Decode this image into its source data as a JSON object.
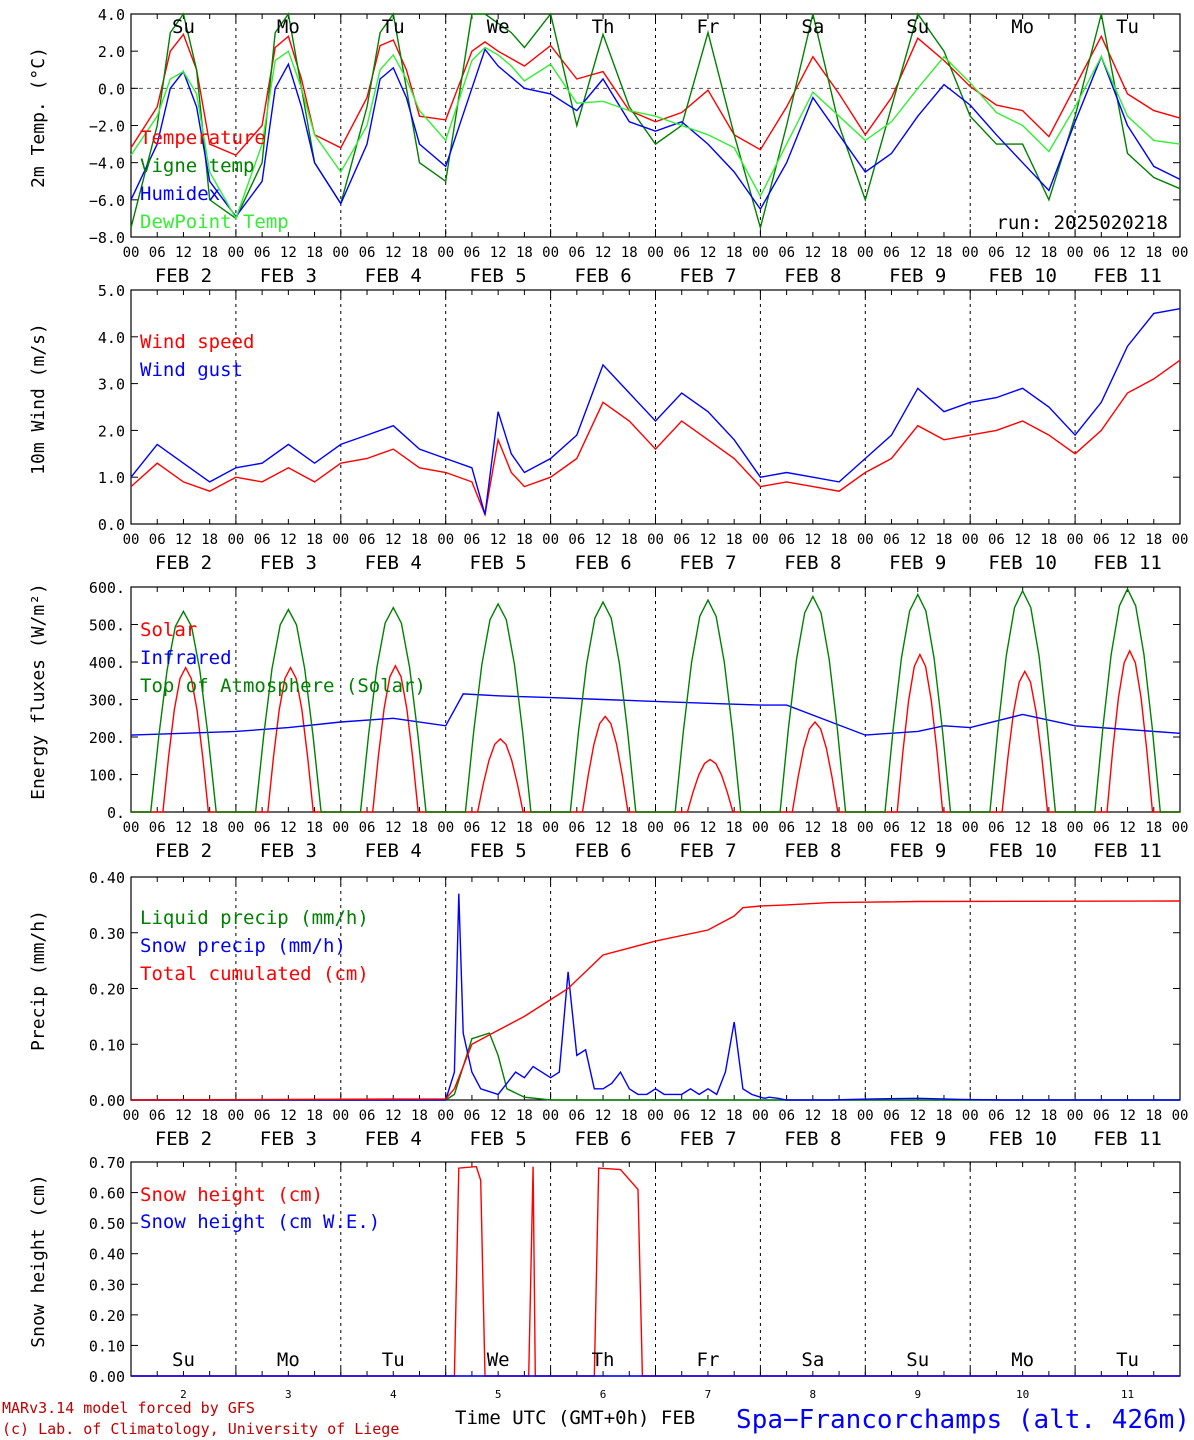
{
  "footer": {
    "model": "MARv3.14 model forced by GFS",
    "lab": "(c) Lab. of Climatology, University of Liege",
    "xlabel": "Time UTC (GMT+0h) FEB",
    "station": "Spa−Francorchamps (alt. 426m)"
  },
  "days": {
    "labels": [
      "Su",
      "Mo",
      "Tu",
      "We",
      "Th",
      "Fr",
      "Sa",
      "Su",
      "Mo",
      "Tu"
    ],
    "weekend_flags": [
      true,
      false,
      false,
      false,
      false,
      false,
      true,
      true,
      false,
      false
    ],
    "dates": [
      "FEB  2",
      "FEB  3",
      "FEB  4",
      "FEB  5",
      "FEB  6",
      "FEB  7",
      "FEB  8",
      "FEB  9",
      "FEB 10",
      "FEB 11"
    ],
    "day_numbers": [
      "2",
      "3",
      "4",
      "5",
      "6",
      "7",
      "8",
      "9",
      "10",
      "11"
    ],
    "hour_ticks": [
      "00",
      "06",
      "12",
      "18"
    ],
    "final_hour": "00"
  },
  "colors": {
    "red": "#ff0000",
    "green": "#008000",
    "blue": "#0000ff",
    "lightgreen": "#33ee33"
  },
  "chart_data": [
    {
      "type": "line",
      "id": "temp",
      "ylabel": "2m Temp. (°C)",
      "ylim": [
        -8,
        4
      ],
      "yticks": [
        "−8.0",
        "−6.0",
        "−4.0",
        "−2.0",
        "0.0",
        "2.0",
        "4.0"
      ],
      "ytick_values": [
        -8,
        -6,
        -4,
        -2,
        0,
        2,
        4
      ],
      "annotation": "run: 2025020218",
      "legend": [
        "Temperature",
        "Vigne temp",
        "Humidex",
        "DewPoint Temp"
      ],
      "series": [
        {
          "name": "Temperature",
          "color": "red",
          "x": [
            0,
            6,
            9,
            12,
            15,
            18,
            24,
            30,
            33,
            36,
            39,
            42,
            48,
            54,
            57,
            60,
            63,
            66,
            72,
            78,
            81,
            84,
            87,
            90,
            96,
            102,
            108,
            114,
            120,
            126,
            132,
            138,
            144,
            150,
            156,
            162,
            168,
            174,
            180,
            186,
            192,
            198,
            204,
            210,
            216,
            222,
            228,
            234,
            240
          ],
          "y": [
            -3.2,
            -1,
            2,
            2.9,
            1,
            -3,
            -3.6,
            -2,
            2.2,
            2.8,
            0.5,
            -2.5,
            -3.2,
            -0.5,
            2.3,
            2.6,
            1,
            -1.5,
            -1.7,
            2,
            2.5,
            2,
            1.6,
            1.2,
            2.3,
            0.5,
            0.9,
            -1.2,
            -1.8,
            -1.3,
            -0.1,
            -2.5,
            -3.3,
            -1,
            1.7,
            -0.3,
            -2.5,
            -0.5,
            2.7,
            1.5,
            0.1,
            -0.9,
            -1.2,
            -2.6,
            0.1,
            2.8,
            -0.3,
            -1.2,
            -1.6
          ]
        },
        {
          "name": "Vigne temp",
          "color": "green",
          "x": [
            0,
            6,
            9,
            12,
            15,
            18,
            24,
            30,
            33,
            36,
            39,
            42,
            48,
            54,
            57,
            60,
            63,
            66,
            72,
            78,
            81,
            84,
            87,
            90,
            96,
            102,
            108,
            114,
            120,
            126,
            132,
            138,
            144,
            150,
            156,
            162,
            168,
            174,
            180,
            186,
            192,
            198,
            204,
            210,
            216,
            222,
            228,
            234,
            240
          ],
          "y": [
            -7.5,
            -2,
            3,
            4,
            1,
            -6,
            -7,
            -4,
            3,
            4,
            0,
            -4,
            -6.2,
            -1,
            3,
            4,
            0,
            -4,
            -5,
            4,
            4,
            3.5,
            3,
            2.2,
            4,
            -2,
            2.9,
            -1,
            -3,
            -2,
            3,
            -2.5,
            -7.5,
            -2,
            4,
            -2,
            -6,
            -1,
            4,
            2,
            -1.5,
            -3,
            -3,
            -6,
            -1.5,
            4,
            -3.5,
            -4.8,
            -5.4
          ]
        },
        {
          "name": "Humidex",
          "color": "blue",
          "x": [
            0,
            6,
            9,
            12,
            15,
            18,
            24,
            30,
            33,
            36,
            39,
            42,
            48,
            54,
            57,
            60,
            63,
            66,
            72,
            78,
            81,
            84,
            87,
            90,
            96,
            102,
            108,
            114,
            120,
            126,
            132,
            138,
            144,
            150,
            156,
            162,
            168,
            174,
            180,
            186,
            192,
            198,
            204,
            210,
            216,
            222,
            228,
            234,
            240
          ],
          "y": [
            -6,
            -3,
            0,
            0.9,
            -1,
            -5,
            -6.9,
            -5,
            0,
            1.3,
            -1,
            -4,
            -6.2,
            -3,
            0.5,
            1.1,
            -0.5,
            -3,
            -4.2,
            0,
            2.1,
            1.2,
            0.6,
            0,
            -0.3,
            -1.2,
            0.5,
            -1.8,
            -2.3,
            -1.8,
            -3,
            -4.5,
            -6.5,
            -4,
            -0.5,
            -2.5,
            -4.5,
            -3.5,
            -1.5,
            0.2,
            -0.9,
            -2.5,
            -4,
            -5.5,
            -1.8,
            1.7,
            -2,
            -4.2,
            -4.9
          ]
        },
        {
          "name": "DewPoint Temp",
          "color": "lightgreen",
          "x": [
            0,
            6,
            9,
            12,
            15,
            18,
            24,
            30,
            33,
            36,
            39,
            42,
            48,
            54,
            57,
            60,
            63,
            66,
            72,
            78,
            81,
            84,
            87,
            90,
            96,
            102,
            108,
            114,
            120,
            126,
            132,
            138,
            144,
            150,
            156,
            162,
            168,
            174,
            180,
            186,
            192,
            198,
            204,
            210,
            216,
            222,
            228,
            234,
            240
          ],
          "y": [
            -3.6,
            -1.5,
            0.5,
            0.9,
            -0.3,
            -4.5,
            -7,
            -3,
            1.5,
            2,
            0,
            -2.5,
            -4.5,
            -2,
            1,
            1.8,
            0.5,
            -1.2,
            -2.8,
            1.5,
            2.2,
            1.8,
            1.2,
            0.4,
            1.3,
            -0.8,
            -0.7,
            -1.2,
            -1.5,
            -2,
            -2.5,
            -3.2,
            -5.8,
            -3,
            -0.2,
            -1.5,
            -2.8,
            -1.8,
            0,
            1.7,
            0.3,
            -1.3,
            -2,
            -3.4,
            -1,
            1.7,
            -1.5,
            -2.8,
            -3
          ]
        }
      ]
    },
    {
      "type": "line",
      "id": "wind",
      "ylabel": "10m Wind (m/s)",
      "ylim": [
        0,
        5
      ],
      "yticks": [
        "0.0",
        "1.0",
        "2.0",
        "3.0",
        "4.0",
        "5.0"
      ],
      "ytick_values": [
        0,
        1,
        2,
        3,
        4,
        5
      ],
      "legend": [
        "Wind speed",
        "Wind gust"
      ],
      "series": [
        {
          "name": "Wind speed",
          "color": "red",
          "x": [
            0,
            6,
            12,
            18,
            24,
            30,
            36,
            42,
            48,
            54,
            60,
            66,
            72,
            78,
            81,
            84,
            87,
            90,
            96,
            102,
            108,
            114,
            120,
            126,
            132,
            138,
            144,
            150,
            156,
            162,
            168,
            174,
            180,
            186,
            192,
            198,
            204,
            210,
            216,
            222,
            228,
            234,
            240
          ],
          "y": [
            0.8,
            1.3,
            0.9,
            0.7,
            1.0,
            0.9,
            1.2,
            0.9,
            1.3,
            1.4,
            1.6,
            1.2,
            1.1,
            0.9,
            0.2,
            1.8,
            1.1,
            0.8,
            1.0,
            1.4,
            2.6,
            2.2,
            1.6,
            2.2,
            1.8,
            1.4,
            0.8,
            0.9,
            0.8,
            0.7,
            1.1,
            1.4,
            2.1,
            1.8,
            1.9,
            2.0,
            2.2,
            1.9,
            1.5,
            2.0,
            2.8,
            3.1,
            3.5
          ]
        },
        {
          "name": "Wind gust",
          "color": "blue",
          "x": [
            0,
            6,
            12,
            18,
            24,
            30,
            36,
            42,
            48,
            54,
            60,
            66,
            72,
            78,
            81,
            84,
            87,
            90,
            96,
            102,
            108,
            114,
            120,
            126,
            132,
            138,
            144,
            150,
            156,
            162,
            168,
            174,
            180,
            186,
            192,
            198,
            204,
            210,
            216,
            222,
            228,
            234,
            240
          ],
          "y": [
            1.0,
            1.7,
            1.3,
            0.9,
            1.2,
            1.3,
            1.7,
            1.3,
            1.7,
            1.9,
            2.1,
            1.6,
            1.4,
            1.2,
            0.2,
            2.4,
            1.5,
            1.1,
            1.4,
            1.9,
            3.4,
            2.8,
            2.2,
            2.8,
            2.4,
            1.8,
            1.0,
            1.1,
            1.0,
            0.9,
            1.4,
            1.9,
            2.9,
            2.4,
            2.6,
            2.7,
            2.9,
            2.5,
            1.9,
            2.6,
            3.8,
            4.5,
            4.6
          ]
        }
      ]
    },
    {
      "type": "line",
      "id": "energy",
      "ylabel": "Energy fluxes (W/m²)",
      "ylim": [
        0,
        600
      ],
      "yticks": [
        "0.",
        "100.",
        "200.",
        "300.",
        "400.",
        "500.",
        "600."
      ],
      "ytick_values": [
        0,
        100,
        200,
        300,
        400,
        500,
        600
      ],
      "legend": [
        "Solar",
        "Infrared",
        "Top of Atmosphere (Solar)"
      ],
      "series": [
        {
          "name": "Solar",
          "color": "red",
          "peaks": [
            385,
            385,
            390,
            195,
            255,
            140,
            240,
            420,
            375,
            430
          ],
          "x": [],
          "y": []
        },
        {
          "name": "Infrared",
          "color": "blue",
          "x": [
            0,
            12,
            24,
            36,
            48,
            60,
            72,
            76,
            84,
            96,
            108,
            120,
            132,
            144,
            150,
            168,
            180,
            186,
            192,
            204,
            216,
            228,
            240
          ],
          "y": [
            205,
            210,
            215,
            225,
            240,
            250,
            230,
            315,
            310,
            305,
            300,
            295,
            290,
            285,
            285,
            205,
            215,
            230,
            225,
            260,
            230,
            220,
            210
          ]
        },
        {
          "name": "Top of Atmosphere (Solar)",
          "color": "green",
          "peaks": [
            535,
            540,
            545,
            555,
            560,
            565,
            575,
            580,
            590,
            595
          ],
          "x": [],
          "y": []
        }
      ]
    },
    {
      "type": "line",
      "id": "precip",
      "ylabel": "Precip (mm/h)",
      "ylim": [
        0,
        0.4
      ],
      "yticks": [
        "0.00",
        "0.10",
        "0.20",
        "0.30",
        "0.40"
      ],
      "ytick_values": [
        0,
        0.1,
        0.2,
        0.3,
        0.4
      ],
      "legend": [
        "Liquid precip (mm/h)",
        "Snow precip (mm/h)",
        "Total cumulated (cm)"
      ],
      "series": [
        {
          "name": "Liquid precip (mm/h)",
          "color": "green",
          "x": [
            0,
            72,
            74,
            78,
            82,
            84,
            86,
            90,
            96,
            240
          ],
          "y": [
            0,
            0,
            0.01,
            0.11,
            0.12,
            0.08,
            0.02,
            0.005,
            0,
            0
          ]
        },
        {
          "name": "Snow precip (mm/h)",
          "color": "blue",
          "x": [
            0,
            72,
            74,
            75,
            76,
            78,
            80,
            84,
            86,
            88,
            90,
            92,
            96,
            98,
            100,
            102,
            104,
            106,
            108,
            110,
            112,
            114,
            116,
            118,
            120,
            122,
            124,
            126,
            128,
            130,
            132,
            134,
            136,
            138,
            140,
            142,
            144,
            145,
            146,
            148,
            150,
            160,
            170,
            180,
            190,
            200,
            240
          ],
          "y": [
            0,
            0,
            0.05,
            0.37,
            0.12,
            0.05,
            0.02,
            0.01,
            0.03,
            0.05,
            0.04,
            0.06,
            0.04,
            0.05,
            0.23,
            0.08,
            0.09,
            0.02,
            0.02,
            0.03,
            0.05,
            0.02,
            0.01,
            0.01,
            0.02,
            0.01,
            0.01,
            0.01,
            0.02,
            0.01,
            0.02,
            0.01,
            0.05,
            0.14,
            0.02,
            0.01,
            0.005,
            0.003,
            0.005,
            0.003,
            0,
            0,
            0.002,
            0.003,
            0.001,
            0,
            0
          ]
        },
        {
          "name": "Total cumulated (cm)",
          "color": "red",
          "x": [
            0,
            72,
            74,
            78,
            84,
            90,
            96,
            100,
            108,
            120,
            132,
            138,
            140,
            144,
            150,
            160,
            170,
            180,
            240
          ],
          "y": [
            0,
            0.002,
            0.02,
            0.1,
            0.125,
            0.15,
            0.18,
            0.2,
            0.26,
            0.285,
            0.305,
            0.33,
            0.345,
            0.348,
            0.35,
            0.354,
            0.355,
            0.356,
            0.357
          ]
        }
      ]
    },
    {
      "type": "line",
      "id": "snow",
      "ylabel": "Snow height (cm)",
      "ylim": [
        0,
        0.7
      ],
      "yticks": [
        "0.00",
        "0.10",
        "0.20",
        "0.30",
        "0.40",
        "0.50",
        "0.60",
        "0.70"
      ],
      "ytick_values": [
        0,
        0.1,
        0.2,
        0.3,
        0.4,
        0.5,
        0.6,
        0.7
      ],
      "legend": [
        "Snow height (cm)",
        "Snow height (cm W.E.)"
      ],
      "series": [
        {
          "name": "Snow height (cm)",
          "color": "red",
          "x": [
            0,
            74,
            75,
            79,
            80,
            81,
            91,
            92,
            92.5,
            93,
            106,
            107,
            112,
            116,
            117,
            240
          ],
          "y": [
            0,
            0,
            0.68,
            0.685,
            0.64,
            0,
            0,
            0.685,
            0,
            0,
            0,
            0.68,
            0.675,
            0.61,
            0,
            0
          ]
        },
        {
          "name": "Snow height (cm W.E.)",
          "color": "blue",
          "x": [
            0,
            240
          ],
          "y": [
            0,
            0
          ]
        }
      ]
    }
  ]
}
